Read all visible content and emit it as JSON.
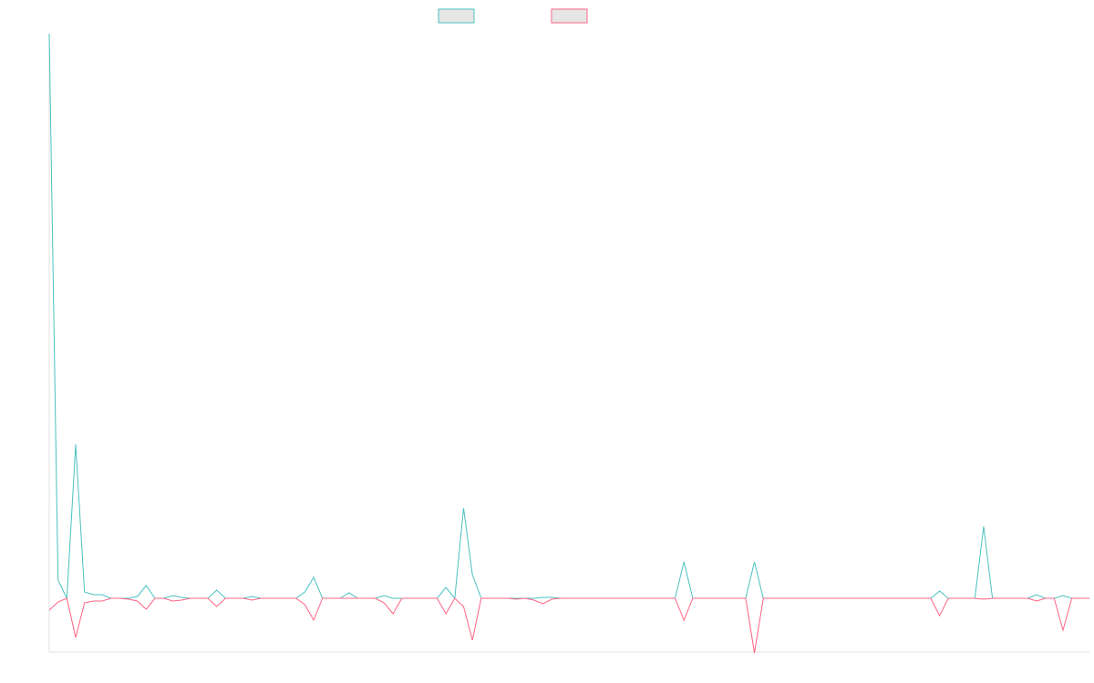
{
  "chart_data": {
    "type": "line",
    "ylim": [
      -60,
      620
    ],
    "series": [
      {
        "color": "#4bc0c0",
        "values": [
          620,
          20,
          0,
          169,
          7,
          4,
          4,
          0,
          0,
          0,
          2,
          14,
          0,
          0,
          3,
          1,
          0,
          0,
          0,
          9,
          0,
          0,
          0,
          2,
          0,
          0,
          0,
          0,
          0,
          7,
          23,
          0,
          0,
          0,
          6,
          0,
          0,
          0,
          3,
          0,
          0,
          0,
          0,
          0,
          0,
          12,
          0,
          99,
          26,
          0,
          0,
          0,
          0,
          0,
          0,
          0,
          1,
          1,
          0,
          0,
          0,
          0,
          0,
          0,
          0,
          0,
          0,
          0,
          0,
          0,
          0,
          0,
          40,
          0,
          0,
          0,
          0,
          0,
          0,
          0,
          40,
          0,
          0,
          0,
          0,
          0,
          0,
          0,
          0,
          0,
          0,
          0,
          0,
          0,
          0,
          0,
          0,
          0,
          0,
          0,
          0,
          8,
          0,
          0,
          0,
          0,
          79,
          0,
          0,
          0,
          0,
          0,
          4,
          0,
          0,
          3,
          0,
          0,
          0
        ]
      },
      {
        "color": "#ff6384",
        "values": [
          -13,
          -4,
          0,
          -43,
          -5,
          -3,
          -3,
          0,
          0,
          -1,
          -3,
          -12,
          0,
          0,
          -3,
          -2,
          0,
          0,
          0,
          -9,
          0,
          0,
          0,
          -2,
          0,
          0,
          0,
          0,
          0,
          -7,
          -24,
          0,
          0,
          0,
          0,
          0,
          0,
          0,
          -5,
          -17,
          0,
          0,
          0,
          0,
          0,
          -17,
          0,
          -9,
          -46,
          0,
          0,
          0,
          0,
          -1,
          0,
          -2,
          -6,
          -1,
          0,
          0,
          0,
          0,
          0,
          0,
          0,
          0,
          0,
          0,
          0,
          0,
          0,
          0,
          -24,
          0,
          0,
          0,
          0,
          0,
          0,
          0,
          -60,
          0,
          0,
          0,
          0,
          0,
          0,
          0,
          0,
          0,
          0,
          0,
          0,
          0,
          0,
          0,
          0,
          0,
          0,
          0,
          0,
          -19,
          0,
          0,
          0,
          0,
          -1,
          0,
          0,
          0,
          0,
          0,
          -3,
          0,
          0,
          -35,
          0,
          0,
          0
        ]
      }
    ]
  }
}
